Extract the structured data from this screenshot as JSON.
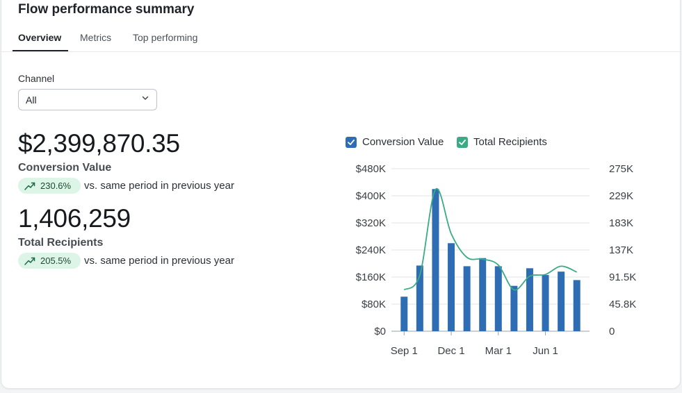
{
  "header": {
    "title": "Flow performance summary"
  },
  "tabs": [
    {
      "label": "Overview",
      "active": true
    },
    {
      "label": "Metrics",
      "active": false
    },
    {
      "label": "Top performing",
      "active": false
    }
  ],
  "filter": {
    "label": "Channel",
    "value": "All"
  },
  "metrics": [
    {
      "value": "$2,399,870.35",
      "label": "Conversion Value",
      "change": "230.6%",
      "comparison": "vs. same period in previous year"
    },
    {
      "value": "1,406,259",
      "label": "Total Recipients",
      "change": "205.5%",
      "comparison": "vs. same period in previous year"
    }
  ],
  "colors": {
    "bar": "#2e6db3",
    "line": "#3aab85",
    "pill_bg": "#dcf5e6",
    "pill_text": "#1d4a32"
  },
  "chart_data": {
    "type": "bar",
    "legend": [
      "Conversion Value",
      "Total Recipients"
    ],
    "x_tick_labels": [
      "Sep 1",
      "Dec 1",
      "Mar 1",
      "Jun 1"
    ],
    "y_left_ticks": [
      "$0",
      "$80K",
      "$160K",
      "$240K",
      "$320K",
      "$400K",
      "$480K"
    ],
    "y_right_ticks": [
      "0",
      "45.8K",
      "91.5K",
      "137K",
      "183K",
      "229K",
      "275K"
    ],
    "ylim_left": [
      0,
      480000
    ],
    "ylim_right": [
      0,
      275000
    ],
    "series": [
      {
        "name": "Conversion Value",
        "type": "bar",
        "axis": "left",
        "values": [
          102000,
          194000,
          420000,
          260000,
          192000,
          216000,
          192000,
          134000,
          186000,
          166000,
          176000,
          151000
        ]
      },
      {
        "name": "Total Recipients",
        "type": "line",
        "axis": "right",
        "values": [
          70000,
          95000,
          240000,
          165000,
          125000,
          122000,
          112000,
          70000,
          93000,
          96000,
          110000,
          100000
        ]
      }
    ]
  }
}
